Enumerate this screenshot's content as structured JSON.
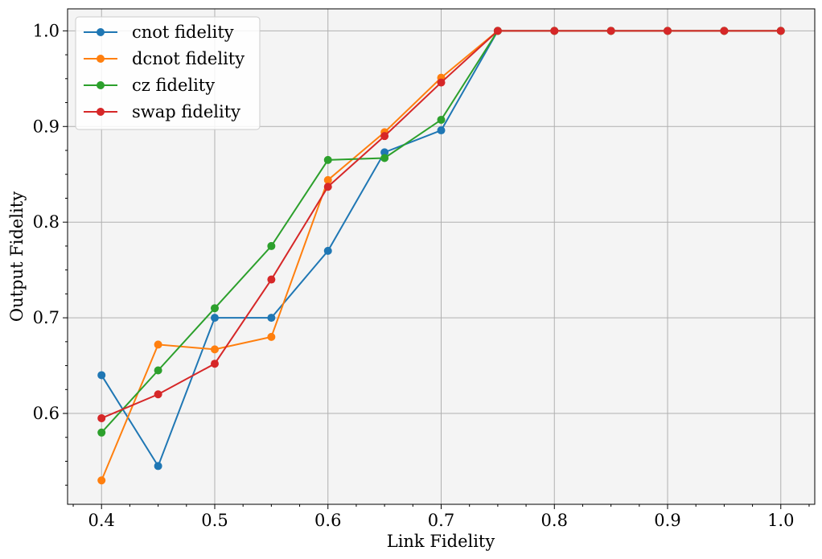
{
  "chart_data": {
    "type": "line",
    "title": "",
    "xlabel": "Link Fidelity",
    "ylabel": "Output Fidelity",
    "xlim": [
      0.37,
      1.03
    ],
    "ylim": [
      0.505,
      1.023
    ],
    "grid": true,
    "legend_position": "top-left",
    "x_ticks": [
      "0.4",
      "0.5",
      "0.6",
      "0.7",
      "0.8",
      "0.9",
      "1.0"
    ],
    "y_ticks": [
      "0.6",
      "0.7",
      "0.8",
      "0.9",
      "1.0"
    ],
    "x": [
      0.4,
      0.45,
      0.5,
      0.55,
      0.6,
      0.65,
      0.7,
      0.75,
      0.8,
      0.85,
      0.9,
      0.95,
      1.0
    ],
    "series": [
      {
        "name": "cnot fidelity",
        "color": "#1f77b4",
        "values": [
          0.64,
          0.545,
          0.7,
          0.7,
          0.77,
          0.873,
          0.896,
          1.0,
          1.0,
          1.0,
          1.0,
          1.0,
          1.0
        ]
      },
      {
        "name": "dcnot fidelity",
        "color": "#ff7f0e",
        "values": [
          0.53,
          0.672,
          0.667,
          0.68,
          0.844,
          0.894,
          0.951,
          1.0,
          1.0,
          1.0,
          1.0,
          1.0,
          1.0
        ]
      },
      {
        "name": "cz fidelity",
        "color": "#2ca02c",
        "values": [
          0.58,
          0.645,
          0.71,
          0.775,
          0.865,
          0.867,
          0.907,
          1.0,
          1.0,
          1.0,
          1.0,
          1.0,
          1.0
        ]
      },
      {
        "name": "swap fidelity",
        "color": "#d62728",
        "values": [
          0.595,
          0.62,
          0.652,
          0.74,
          0.837,
          0.89,
          0.946,
          1.0,
          1.0,
          1.0,
          1.0,
          1.0,
          1.0
        ]
      }
    ]
  }
}
